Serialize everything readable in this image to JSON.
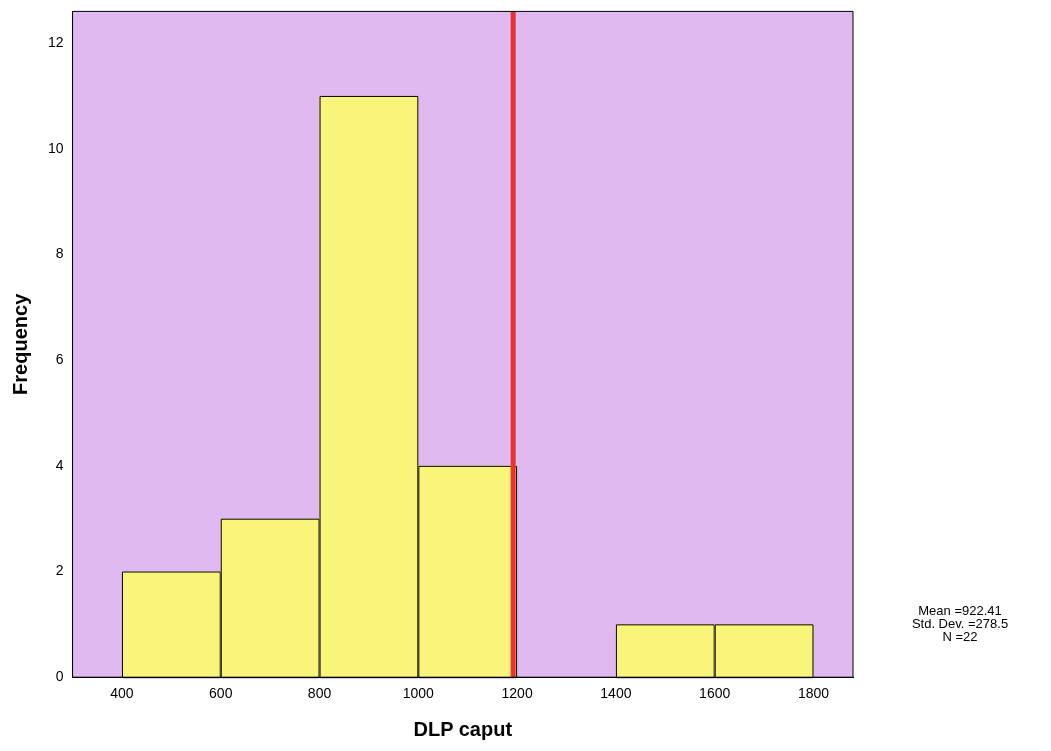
{
  "chart_data": {
    "type": "histogram",
    "xlabel": "DLP caput",
    "ylabel": "Frequency",
    "bins": [
      400,
      600,
      800,
      1000,
      1200,
      1400,
      1600,
      1800
    ],
    "values": [
      2,
      3,
      11,
      4,
      0,
      1,
      1
    ],
    "color": "#f8f57a",
    "xlim": [
      300,
      1880
    ],
    "xticks": [
      400,
      600,
      800,
      1000,
      1200,
      1400,
      1600,
      1800
    ],
    "ylim": [
      0,
      12.6
    ],
    "yticks": [
      0,
      2,
      4,
      6,
      8,
      10,
      12
    ],
    "grid": false,
    "legend": false,
    "ref_lines": [
      {
        "axis": "x",
        "value": 1192,
        "color": "#e8322f"
      }
    ],
    "annotations": [
      "Mean =922.41",
      "Std. Dev. =278.5",
      "N =22"
    ]
  }
}
